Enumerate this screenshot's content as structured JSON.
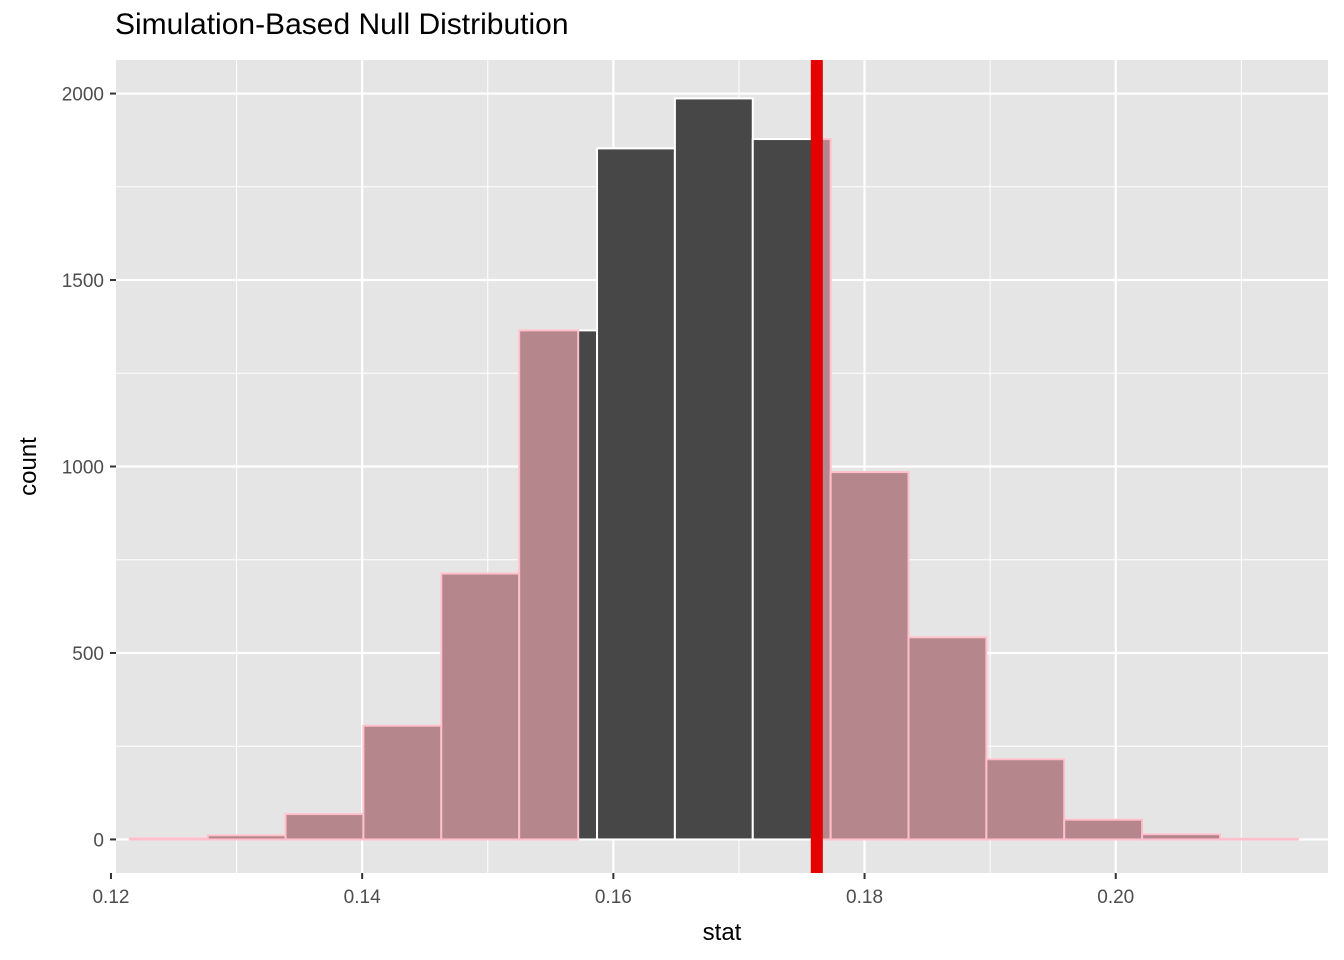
{
  "chart_data": {
    "type": "bar",
    "title": "Simulation-Based Null Distribution",
    "xlabel": "stat",
    "ylabel": "count",
    "xlim": [
      0.1204,
      0.2169
    ],
    "ylim": [
      -90,
      2090
    ],
    "x_ticks": [
      0.12,
      0.14,
      0.16,
      0.18,
      0.2
    ],
    "x_tick_labels": [
      "0.12",
      "0.14",
      "0.16",
      "0.18",
      "0.20"
    ],
    "y_ticks": [
      0,
      500,
      1000,
      1500,
      2000
    ],
    "y_tick_labels": [
      "0",
      "500",
      "1000",
      "1500",
      "2000"
    ],
    "grid": true,
    "bin_width": 0.0062,
    "bins": [
      {
        "x_start": 0.1215,
        "x_end": 0.1277,
        "count": 3
      },
      {
        "x_start": 0.1277,
        "x_end": 0.1339,
        "count": 11
      },
      {
        "x_start": 0.1339,
        "x_end": 0.1401,
        "count": 68
      },
      {
        "x_start": 0.1401,
        "x_end": 0.1463,
        "count": 305
      },
      {
        "x_start": 0.1463,
        "x_end": 0.1525,
        "count": 713
      },
      {
        "x_start": 0.1525,
        "x_end": 0.1587,
        "count": 1365
      },
      {
        "x_start": 0.1587,
        "x_end": 0.1649,
        "count": 1853
      },
      {
        "x_start": 0.1649,
        "x_end": 0.1711,
        "count": 1987
      },
      {
        "x_start": 0.1711,
        "x_end": 0.1773,
        "count": 1878
      },
      {
        "x_start": 0.1773,
        "x_end": 0.1835,
        "count": 985
      },
      {
        "x_start": 0.1835,
        "x_end": 0.1897,
        "count": 542
      },
      {
        "x_start": 0.1897,
        "x_end": 0.1959,
        "count": 215
      },
      {
        "x_start": 0.1959,
        "x_end": 0.2021,
        "count": 53
      },
      {
        "x_start": 0.2021,
        "x_end": 0.2083,
        "count": 14
      },
      {
        "x_start": 0.2083,
        "x_end": 0.2145,
        "count": 2
      }
    ],
    "shaded_region": {
      "left": 0.1572,
      "right": 0.1762
    },
    "observed_stat": 0.1762,
    "colors": {
      "panel": "#e5e5e5",
      "grid_major": "#ffffff",
      "bar_fill": "#474747",
      "bar_outline": "#ffffff",
      "shade_fill": "#b5868c",
      "shade_outline": "#ffc0cb",
      "obs_line": "#e50000"
    }
  }
}
